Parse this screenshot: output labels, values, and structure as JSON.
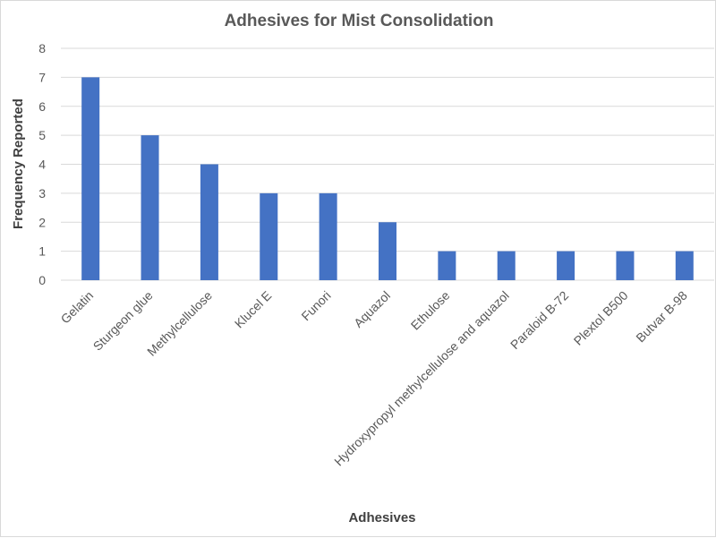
{
  "chart_data": {
    "type": "bar",
    "title": "Adhesives for Mist Consolidation",
    "xlabel": "Adhesives",
    "ylabel": "Frequency Reported",
    "categories": [
      "Gelatin",
      "Sturgeon glue",
      "Methylcellulose",
      "Klucel E",
      "Funori",
      "Aquazol",
      "Ethulose",
      "Hydroxypropyl methylcellulose and aquazol",
      "Paraloid B-72",
      "Plextol B500",
      "Butvar B-98"
    ],
    "values": [
      7,
      5,
      4,
      3,
      3,
      2,
      1,
      1,
      1,
      1,
      1
    ],
    "ylim": [
      0,
      8
    ],
    "yticks": [
      "0",
      "1",
      "2",
      "3",
      "4",
      "5",
      "6",
      "7",
      "8"
    ],
    "grid": true,
    "bar_color": "#4472c4"
  }
}
